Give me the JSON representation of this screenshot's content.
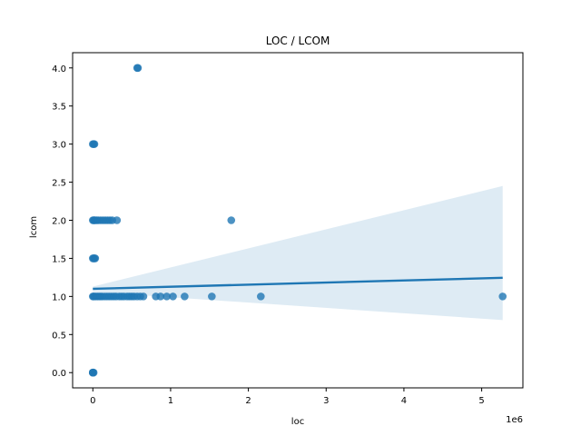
{
  "chart_data": {
    "type": "scatter",
    "title": "LOC / LCOM",
    "xlabel": "loc",
    "ylabel": "lcom",
    "x_offset_label": "1e6",
    "xlim": [
      -0.26,
      5.53
    ],
    "ylim": [
      -0.2,
      4.2
    ],
    "x_ticks": [
      0,
      1,
      2,
      3,
      4,
      5
    ],
    "x_tick_labels": [
      "0",
      "1",
      "2",
      "3",
      "4",
      "5"
    ],
    "y_ticks": [
      0.0,
      0.5,
      1.0,
      1.5,
      2.0,
      2.5,
      3.0,
      3.5,
      4.0
    ],
    "y_tick_labels": [
      "0.0",
      "0.5",
      "1.0",
      "1.5",
      "2.0",
      "2.5",
      "3.0",
      "3.5",
      "4.0"
    ],
    "grid": false,
    "colors": {
      "points": "#1f77b4",
      "regression_line": "#1f77b4",
      "confidence_band": "#1f77b4"
    },
    "points": {
      "x_units": "1e6",
      "x": [
        0.0,
        0.0,
        0.01,
        0.0,
        0.57,
        0.58,
        0.0,
        0.01,
        0.02,
        0.0,
        0.01,
        0.02,
        0.03,
        0.05,
        0.07,
        0.1,
        0.13,
        0.16,
        0.19,
        0.22,
        0.25,
        0.31,
        1.78,
        0.0,
        0.01,
        0.02,
        0.03,
        0.0,
        0.01,
        0.02,
        0.04,
        0.06,
        0.08,
        0.1,
        0.12,
        0.15,
        0.18,
        0.21,
        0.24,
        0.27,
        0.3,
        0.34,
        0.37,
        0.4,
        0.44,
        0.47,
        0.5,
        0.53,
        0.57,
        0.61,
        0.65,
        0.81,
        0.87,
        0.95,
        1.03,
        1.18,
        1.53,
        2.16,
        5.27
      ],
      "y": [
        0.0,
        0.0,
        0.0,
        0.0,
        4.0,
        4.0,
        3.0,
        3.0,
        3.0,
        2.0,
        2.0,
        2.0,
        2.0,
        2.0,
        2.0,
        2.0,
        2.0,
        2.0,
        2.0,
        2.0,
        2.0,
        2.0,
        2.0,
        1.5,
        1.5,
        1.5,
        1.5,
        1.0,
        1.0,
        1.0,
        1.0,
        1.0,
        1.0,
        1.0,
        1.0,
        1.0,
        1.0,
        1.0,
        1.0,
        1.0,
        1.0,
        1.0,
        1.0,
        1.0,
        1.0,
        1.0,
        1.0,
        1.0,
        1.0,
        1.0,
        1.0,
        1.0,
        1.0,
        1.0,
        1.0,
        1.0,
        1.0,
        1.0,
        1.0
      ]
    },
    "regression": {
      "x": [
        0.0,
        5.27
      ],
      "y": [
        1.1,
        1.245
      ]
    },
    "confidence_band": {
      "x": [
        0.0,
        5.27
      ],
      "lower": [
        1.06,
        0.69
      ],
      "upper": [
        1.13,
        2.45
      ]
    }
  }
}
